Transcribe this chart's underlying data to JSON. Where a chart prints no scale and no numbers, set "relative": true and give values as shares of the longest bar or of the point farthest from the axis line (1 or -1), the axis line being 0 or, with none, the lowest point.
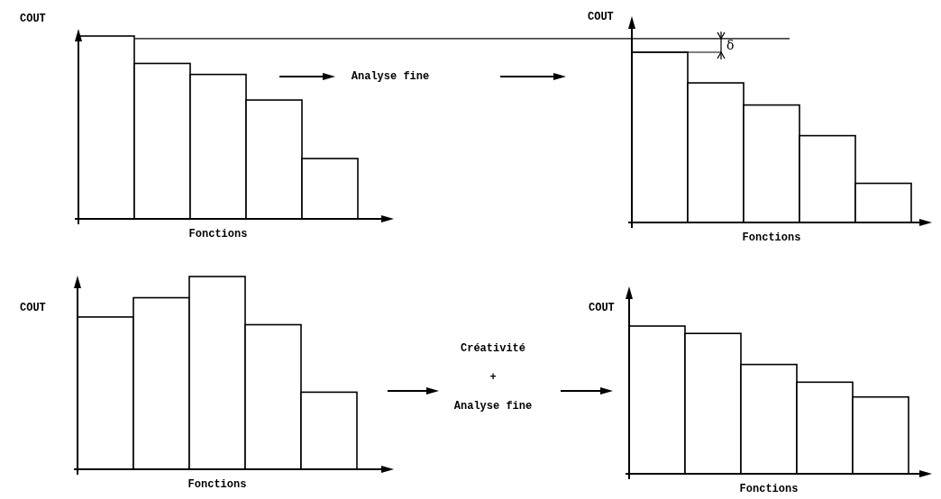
{
  "chart_data": [
    {
      "type": "bar",
      "relative": true,
      "ylabel": "COUT",
      "xlabel": "Fonctions",
      "categories": [
        null,
        null,
        null,
        null,
        null
      ],
      "values": [
        1,
        0.85,
        0.79,
        0.65,
        0.33
      ],
      "color": "#ffffff",
      "annotations": [
        "Analyse fine"
      ]
    },
    {
      "type": "bar",
      "relative": true,
      "ylabel": "COUT",
      "xlabel": "Fonctions",
      "categories": [
        null,
        null,
        null,
        null,
        null
      ],
      "values": [
        1,
        0.82,
        0.69,
        0.51,
        0.23
      ],
      "color": "#ffffff",
      "ref_lines": [
        {
          "axis": "y",
          "value": 1.08,
          "label": "δ"
        }
      ]
    },
    {
      "type": "bar",
      "relative": true,
      "ylabel": "COUT",
      "xlabel": "Fonctions",
      "categories": [
        null,
        null,
        null,
        null,
        null
      ],
      "values": [
        0.79,
        0.89,
        1,
        0.75,
        0.4
      ],
      "color": "#ffffff",
      "annotations": [
        "Créativité\n+\nAnalyse fine"
      ]
    },
    {
      "type": "bar",
      "relative": true,
      "ylabel": "COUT",
      "xlabel": "Fonctions",
      "categories": [
        null,
        null,
        null,
        null,
        null
      ],
      "values": [
        1,
        0.95,
        0.74,
        0.62,
        0.52
      ],
      "color": "#ffffff"
    }
  ]
}
